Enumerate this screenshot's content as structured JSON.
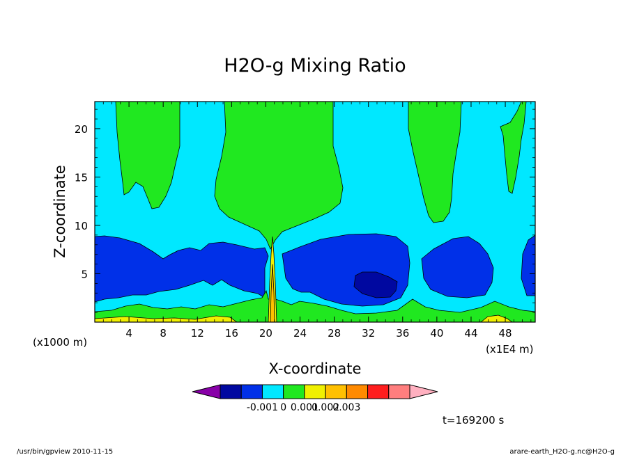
{
  "chart_data": {
    "type": "heatmap",
    "title": "H2O-g Mixing Ratio",
    "xlabel": "X-coordinate",
    "ylabel": "Z-coordinate",
    "x_unit_label": "(x1000 m)",
    "x_scale_label": "(x1E4 m)",
    "xlim": [
      0,
      51.5
    ],
    "ylim": [
      0,
      22.8
    ],
    "x_ticks": [
      "4",
      "8",
      "12",
      "16",
      "20",
      "24",
      "28",
      "32",
      "36",
      "40",
      "44",
      "48"
    ],
    "y_ticks": [
      "5",
      "10",
      "15",
      "20"
    ],
    "colorbar": {
      "colors": [
        "#8800a8",
        "#0008a0",
        "#0030e8",
        "#00e8ff",
        "#20e820",
        "#f0f000",
        "#ffc000",
        "#ff8a00",
        "#ff1e1e",
        "#ff7e7e",
        "#ffb0c0"
      ],
      "labels": [
        "-0.001",
        "0",
        "0.001",
        "0.002",
        "0.003"
      ]
    },
    "time_label": "t=169200 s"
  },
  "footer": {
    "left": "/usr/bin/gpview   2010-11-15",
    "right": "arare-earth_H2O-g.nc@H2O-g"
  }
}
